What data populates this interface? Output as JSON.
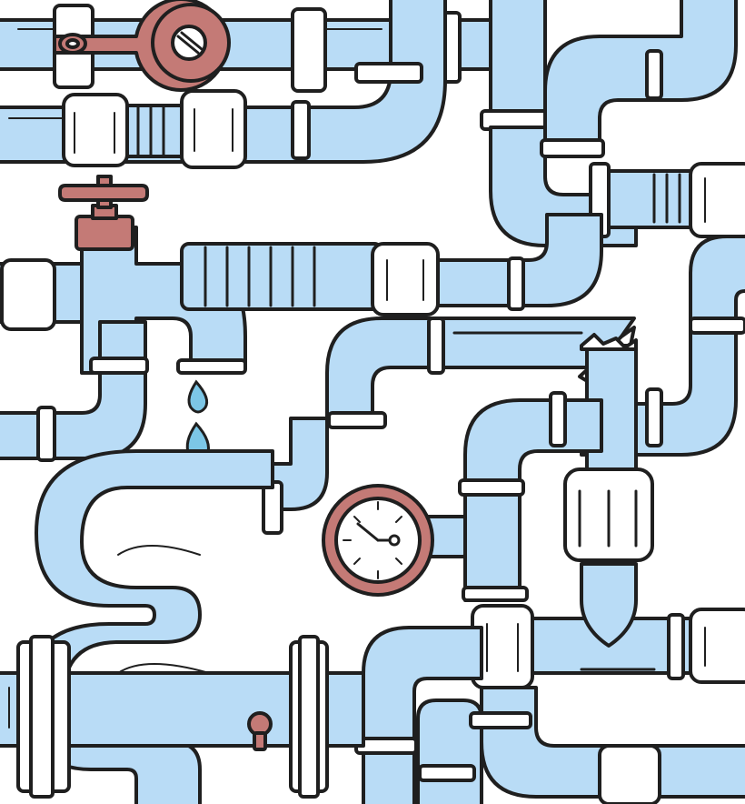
{
  "image": {
    "subject": "plumbing-pipes-illustration",
    "palette": {
      "pipe_fill": "#b9dcf6",
      "outline": "#1f1f1f",
      "accent_red": "#c47a76",
      "fitting_white": "#ffffff",
      "water_drop": "#7cc6e6",
      "background": "#ffffff"
    },
    "elements": [
      "valve-handle-icon",
      "faucet-icon",
      "water-drop-icon",
      "pressure-gauge-icon",
      "broken-pipe-icon",
      "coiled-hose-icon",
      "pipe-flange-icon",
      "hex-nut-icon"
    ]
  }
}
